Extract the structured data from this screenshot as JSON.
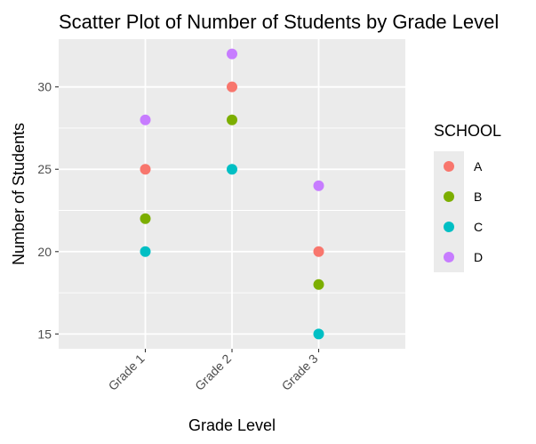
{
  "chart_data": {
    "type": "scatter",
    "title": "Scatter Plot of Number of Students by Grade Level",
    "xlabel": "Grade Level",
    "ylabel": "Number of Students",
    "categories": [
      "Grade 1",
      "Grade 2",
      "Grade 3"
    ],
    "y_ticks": [
      15,
      20,
      25,
      30
    ],
    "ylim": [
      14.1,
      32.9
    ],
    "grid": true,
    "legend": {
      "title": "SCHOOL",
      "position": "right"
    },
    "series": [
      {
        "name": "A",
        "color": "#F8766D",
        "values": [
          25,
          30,
          20
        ]
      },
      {
        "name": "B",
        "color": "#7CAE00",
        "values": [
          22,
          28,
          18
        ]
      },
      {
        "name": "C",
        "color": "#00BFC4",
        "values": [
          20,
          25,
          15
        ]
      },
      {
        "name": "D",
        "color": "#C77CFF",
        "values": [
          28,
          32,
          24
        ]
      }
    ],
    "colors": {
      "panel_background": "#EBEBEB",
      "grid_line": "#FFFFFF",
      "tick_color": "#333333"
    }
  }
}
